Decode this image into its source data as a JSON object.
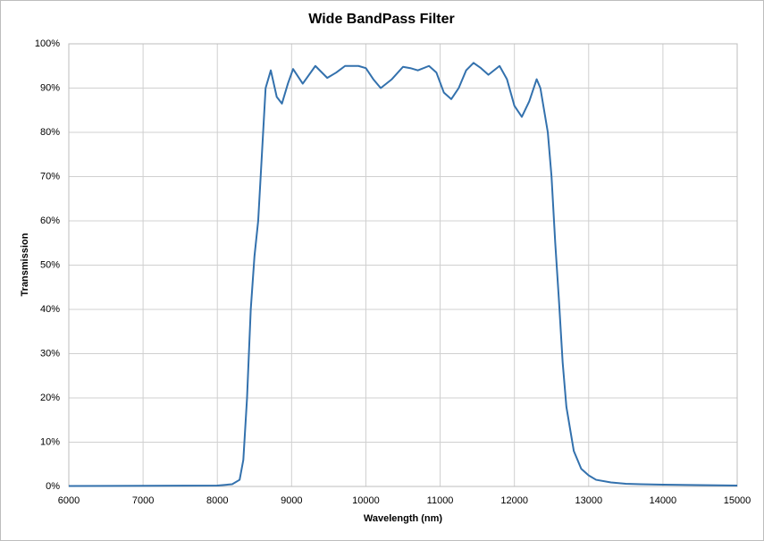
{
  "chart_data": {
    "type": "line",
    "title": "Wide BandPass Filter",
    "x_label": "Wavelength (nm)",
    "y_label": "Transmission",
    "x": [
      6000,
      8000,
      8200,
      8300,
      8350,
      8400,
      8450,
      8500,
      8550,
      8600,
      8650,
      8720,
      8800,
      8870,
      8950,
      9020,
      9150,
      9320,
      9480,
      9600,
      9720,
      9900,
      10000,
      10100,
      10200,
      10350,
      10500,
      10600,
      10700,
      10850,
      10950,
      11050,
      11150,
      11250,
      11350,
      11450,
      11550,
      11650,
      11800,
      11900,
      12000,
      12100,
      12200,
      12300,
      12350,
      12450,
      12500,
      12550,
      12600,
      12650,
      12700,
      12800,
      12900,
      13000,
      13100,
      13300,
      13500,
      13700,
      14000,
      14500,
      15000
    ],
    "series": [
      {
        "name": "Transmission",
        "color": "#3371ad",
        "values": [
          0.1,
          0.2,
          0.5,
          1.5,
          6,
          20,
          40,
          52,
          60,
          75,
          90,
          94,
          88,
          86.5,
          91,
          94.3,
          91,
          95,
          92.3,
          93.5,
          95,
          95,
          94.5,
          92,
          90,
          92,
          94.8,
          94.5,
          94,
          95,
          93.5,
          89,
          87.5,
          90,
          94,
          95.7,
          94.5,
          93,
          95,
          92,
          86,
          83.5,
          87,
          92,
          90,
          80,
          70,
          55,
          42,
          28,
          18,
          8,
          4,
          2.5,
          1.5,
          0.9,
          0.6,
          0.5,
          0.4,
          0.3,
          0.2
        ]
      }
    ],
    "xlim": [
      6000,
      15000
    ],
    "xticks": [
      6000,
      7000,
      8000,
      9000,
      10000,
      11000,
      12000,
      13000,
      14000,
      15000
    ],
    "ylim": [
      0,
      100
    ],
    "yticks": [
      {
        "value": 0,
        "label": "0%"
      },
      {
        "value": 10,
        "label": "10%"
      },
      {
        "value": 20,
        "label": "20%"
      },
      {
        "value": 30,
        "label": "30%"
      },
      {
        "value": 40,
        "label": "40%"
      },
      {
        "value": 50,
        "label": "50%"
      },
      {
        "value": 60,
        "label": "60%"
      },
      {
        "value": 70,
        "label": "70%"
      },
      {
        "value": 80,
        "label": "80%"
      },
      {
        "value": 90,
        "label": "90%"
      },
      {
        "value": 100,
        "label": "100%"
      }
    ],
    "grid": true
  }
}
